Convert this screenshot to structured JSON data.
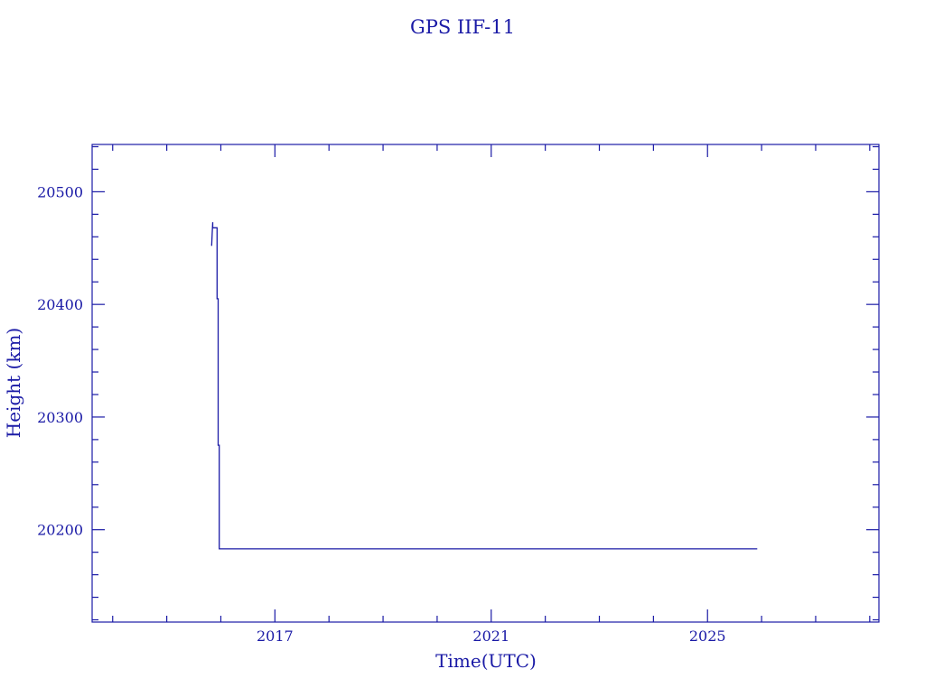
{
  "chart_data": {
    "type": "line",
    "title": "GPS IIF-11",
    "xlabel": "Time(UTC)",
    "ylabel": "Height (km)",
    "xlim": [
      2013.62,
      2028.17
    ],
    "ylim": [
      20118,
      20542
    ],
    "x_major_ticks": [
      2017,
      2021,
      2025
    ],
    "x_tick_labels": [
      "2017",
      "2021",
      "2025"
    ],
    "x_minor_step": 1,
    "y_major_ticks": [
      20200,
      20300,
      20400,
      20500
    ],
    "y_tick_labels": [
      "20200",
      "20300",
      "20400",
      "20500"
    ],
    "y_minor_step": 20,
    "grid": false,
    "color": "#1a1aa6",
    "series": [
      {
        "points": [
          [
            2015.83,
            20452
          ],
          [
            2015.84,
            20463
          ],
          [
            2015.85,
            20473
          ],
          [
            2015.85,
            20468
          ],
          [
            2015.93,
            20468
          ],
          [
            2015.93,
            20405
          ],
          [
            2015.95,
            20405
          ],
          [
            2015.95,
            20275
          ],
          [
            2015.97,
            20275
          ],
          [
            2015.97,
            20183
          ],
          [
            2025.92,
            20183
          ]
        ]
      }
    ]
  }
}
